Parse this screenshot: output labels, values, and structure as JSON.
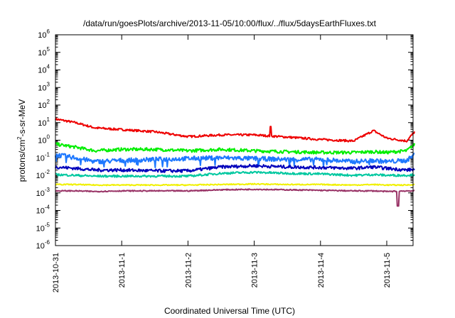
{
  "chart_data": {
    "type": "line",
    "title": "/data/run/goesPlots/archive/2013-11-05/10:00/flux/../flux/5daysEarthFluxes.txt",
    "xlabel": "Coordinated Universal Time (UTC)",
    "ylabel_base": "protons/cm",
    "ylabel_sup": "2",
    "ylabel_rest": "-s-sr-MeV",
    "y_scale": "log",
    "ylim": [
      1e-06,
      1000000.0
    ],
    "y_ticks": [
      {
        "base": "10",
        "exp": "-6",
        "value": 1e-06
      },
      {
        "base": "10",
        "exp": "-5",
        "value": 1e-05
      },
      {
        "base": "10",
        "exp": "-4",
        "value": 0.0001
      },
      {
        "base": "10",
        "exp": "-3",
        "value": 0.001
      },
      {
        "base": "10",
        "exp": "-2",
        "value": 0.01
      },
      {
        "base": "10",
        "exp": "-1",
        "value": 0.1
      },
      {
        "base": "10",
        "exp": "0",
        "value": 1
      },
      {
        "base": "10",
        "exp": "1",
        "value": 10
      },
      {
        "base": "10",
        "exp": "2",
        "value": 100
      },
      {
        "base": "10",
        "exp": "3",
        "value": 1000
      },
      {
        "base": "10",
        "exp": "4",
        "value": 10000
      },
      {
        "base": "10",
        "exp": "5",
        "value": 100000
      },
      {
        "base": "10",
        "exp": "6",
        "value": 1000000
      }
    ],
    "xlim": [
      "2013-10-31",
      "2013-11-05 10:00"
    ],
    "x_ticks": [
      "2013-10-31",
      "2013-11-1",
      "2013-11-2",
      "2013-11-3",
      "2013-11-4",
      "2013-11-5"
    ],
    "grid": false,
    "legend": "none",
    "series": [
      {
        "color": "#ee0000",
        "x": [
          0,
          0.3,
          0.6,
          1.0,
          1.5,
          2.0,
          2.5,
          3.0,
          3.5,
          4.0,
          4.5,
          4.8,
          5.0,
          5.3,
          5.42
        ],
        "values": [
          16,
          10,
          5,
          4,
          3,
          1.6,
          2.0,
          2.0,
          1.5,
          1.1,
          0.9,
          3.5,
          1.3,
          0.9,
          3.0
        ],
        "spikes": [
          {
            "x": 3.25,
            "value": 6
          }
        ]
      },
      {
        "color": "#00ee00",
        "x": [
          0,
          0.3,
          0.6,
          1.0,
          1.5,
          2.0,
          2.5,
          3.0,
          3.5,
          4.0,
          4.5,
          4.8,
          5.0,
          5.3,
          5.42
        ],
        "values": [
          0.6,
          0.4,
          0.25,
          0.3,
          0.3,
          0.25,
          0.3,
          0.25,
          0.22,
          0.2,
          0.2,
          0.22,
          0.2,
          0.25,
          0.6
        ]
      },
      {
        "color": "#1e78ff",
        "x": [
          0,
          0.3,
          0.6,
          1.0,
          1.5,
          2.0,
          2.5,
          3.0,
          3.5,
          4.0,
          4.5,
          4.8,
          5.0,
          5.3,
          5.42
        ],
        "values": [
          0.15,
          0.1,
          0.06,
          0.07,
          0.08,
          0.09,
          0.1,
          0.09,
          0.08,
          0.08,
          0.06,
          0.07,
          0.06,
          0.07,
          0.15
        ]
      },
      {
        "color": "#0000bb",
        "x": [
          0,
          0.3,
          0.6,
          1.0,
          1.5,
          2.0,
          2.5,
          3.0,
          3.5,
          4.0,
          4.5,
          4.8,
          5.0,
          5.3,
          5.42
        ],
        "values": [
          0.03,
          0.025,
          0.02,
          0.02,
          0.018,
          0.018,
          0.03,
          0.035,
          0.03,
          0.028,
          0.025,
          0.03,
          0.025,
          0.02,
          0.022
        ]
      },
      {
        "color": "#00c8a0",
        "x": [
          0,
          0.3,
          0.6,
          1.0,
          1.5,
          2.0,
          2.5,
          3.0,
          3.5,
          4.0,
          4.5,
          4.8,
          5.0,
          5.3,
          5.42
        ],
        "values": [
          0.011,
          0.01,
          0.009,
          0.009,
          0.009,
          0.009,
          0.013,
          0.015,
          0.013,
          0.012,
          0.01,
          0.011,
          0.01,
          0.01,
          0.011
        ]
      },
      {
        "color": "#f0f000",
        "x": [
          0,
          0.3,
          0.6,
          1.0,
          1.5,
          2.0,
          2.5,
          3.0,
          3.5,
          4.0,
          4.5,
          4.8,
          5.0,
          5.3,
          5.42
        ],
        "values": [
          0.003,
          0.003,
          0.0028,
          0.0028,
          0.0028,
          0.0028,
          0.003,
          0.0032,
          0.003,
          0.003,
          0.0028,
          0.003,
          0.0028,
          0.0028,
          0.003
        ]
      },
      {
        "color": "#993366",
        "x": [
          0,
          0.3,
          0.6,
          1.0,
          1.5,
          2.0,
          2.5,
          3.0,
          3.5,
          4.0,
          4.5,
          4.8,
          5.0,
          5.3,
          5.42
        ],
        "values": [
          0.0013,
          0.0013,
          0.0012,
          0.0013,
          0.0013,
          0.0013,
          0.0015,
          0.0016,
          0.0015,
          0.0014,
          0.0013,
          0.0013,
          0.0012,
          0.0013,
          0.0013
        ],
        "spikes": [
          {
            "x": 5.17,
            "value": 0.00018
          }
        ]
      }
    ]
  }
}
